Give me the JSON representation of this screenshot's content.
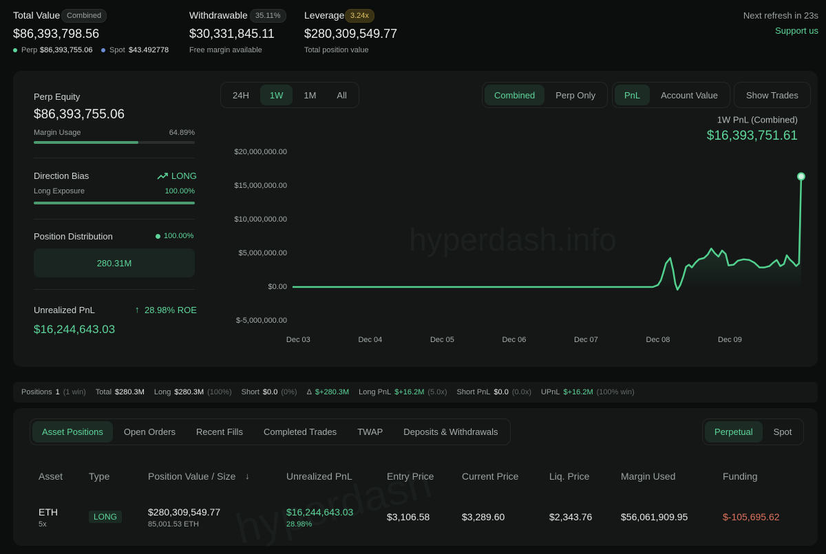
{
  "header": {
    "total_value": {
      "label": "Total Value",
      "badge": "Combined",
      "value": "$86,393,798.56",
      "perp_label": "Perp",
      "perp_value": "$86,393,755.06",
      "spot_label": "Spot",
      "spot_value": "$43.492778"
    },
    "withdrawable": {
      "label": "Withdrawable",
      "badge": "35.11%",
      "value": "$30,331,845.11",
      "sub": "Free margin available"
    },
    "leverage": {
      "label": "Leverage",
      "badge": "3.24x",
      "value": "$280,309,549.77",
      "sub": "Total position value"
    },
    "refresh": "Next refresh in 23s",
    "support": "Support us"
  },
  "sidebar": {
    "perp_equity_label": "Perp Equity",
    "perp_equity": "$86,393,755.06",
    "margin_usage_title": "Margin Usage",
    "margin_usage": {
      "value": 64.89,
      "label": "64.89%"
    },
    "direction_label": "Direction Bias",
    "direction": "LONG",
    "long_exposure_title": "Long Exposure",
    "long_exposure": {
      "value": 100,
      "label": "100.00%"
    },
    "distribution_label": "Position Distribution",
    "distribution_pct": "100.00%",
    "distribution_box": "280.31M",
    "upnl_label": "Unrealized PnL",
    "roe": "28.98% ROE",
    "upnl": "$16,244,643.03"
  },
  "controls": {
    "timeframes": {
      "items": [
        "24H",
        "1W",
        "1M",
        "All"
      ],
      "active": 1
    },
    "views": {
      "items": [
        "Combined",
        "Perp Only"
      ],
      "active": 0
    },
    "metrics": {
      "items": [
        "PnL",
        "Account Value"
      ],
      "active": 0
    },
    "show_trades": "Show Trades"
  },
  "chart_data": {
    "type": "area",
    "subtitle": "1W PnL (Combined)",
    "value_text": "$16,393,751.61",
    "watermark": "hyperdash.info",
    "color": "#52d18f",
    "x": [
      -0.08,
      4.93,
      5.0,
      5.04,
      5.07,
      5.11,
      5.17,
      5.21,
      5.24,
      5.27,
      5.31,
      5.35,
      5.39,
      5.43,
      5.47,
      5.52,
      5.57,
      5.64,
      5.69,
      5.74,
      5.79,
      5.84,
      5.89,
      5.94,
      5.98,
      6.05,
      6.11,
      6.19,
      6.27,
      6.34,
      6.41,
      6.48,
      6.55,
      6.6,
      6.65,
      6.7,
      6.75,
      6.79,
      6.83,
      6.88,
      6.92,
      6.96,
      6.99
    ],
    "values": [
      0,
      0,
      300000,
      1000000,
      2000000,
      3500000,
      4300000,
      2500000,
      500000,
      -400000,
      300000,
      1500000,
      3000000,
      3300000,
      2900000,
      3600000,
      4100000,
      4300000,
      4800000,
      5700000,
      5000000,
      4500000,
      5400000,
      4900000,
      3200000,
      3300000,
      3900000,
      4100000,
      4000000,
      3600000,
      2900000,
      2900000,
      3100000,
      3600000,
      4000000,
      3100000,
      3400000,
      4700000,
      4100000,
      3600000,
      3100000,
      3500000,
      16393751.61
    ],
    "xlim": [
      -0.08,
      7
    ],
    "xticks": [
      {
        "value": 0,
        "label": "Dec 03"
      },
      {
        "value": 1,
        "label": "Dec 04"
      },
      {
        "value": 2,
        "label": "Dec 05"
      },
      {
        "value": 3,
        "label": "Dec 06"
      },
      {
        "value": 4,
        "label": "Dec 07"
      },
      {
        "value": 5,
        "label": "Dec 08"
      },
      {
        "value": 6,
        "label": "Dec 09"
      }
    ],
    "ylim": [
      -5000000,
      20000000
    ],
    "yticks": [
      {
        "value": -5000000,
        "label": "$-5,000,000.00"
      },
      {
        "value": 0,
        "label": "$0.00"
      },
      {
        "value": 5000000,
        "label": "$5,000,000.00"
      },
      {
        "value": 10000000,
        "label": "$10,000,000.00"
      },
      {
        "value": 15000000,
        "label": "$15,000,000.00"
      },
      {
        "value": 20000000,
        "label": "$20,000,000.00"
      }
    ]
  },
  "stats": [
    {
      "label": "Positions",
      "value": "1",
      "note": "(1 win)"
    },
    {
      "label": "Total",
      "value": "$280.3M"
    },
    {
      "label": "Long",
      "value": "$280.3M",
      "note": "(100%)"
    },
    {
      "label": "Short",
      "value": "$0.0",
      "note": "(0%)"
    },
    {
      "label": "Δ",
      "value": "$+280.3M"
    },
    {
      "label": "Long PnL",
      "value": "$+16.2M",
      "note": "(5.0x)"
    },
    {
      "label": "Short PnL",
      "value": "$0.0",
      "note": "(0.0x)"
    },
    {
      "label": "UPnL",
      "value": "$+16.2M",
      "note": "(100% win)"
    }
  ],
  "tabs": {
    "items": [
      "Asset Positions",
      "Open Orders",
      "Recent Fills",
      "Completed Trades",
      "TWAP",
      "Deposits & Withdrawals"
    ],
    "active": 0
  },
  "market_tabs": {
    "items": [
      "Perpetual",
      "Spot"
    ],
    "active": 0
  },
  "table": {
    "watermark": "hyperdash",
    "headers": [
      "Asset",
      "Type",
      "Position Value / Size",
      "Unrealized PnL",
      "Entry Price",
      "Current Price",
      "Liq. Price",
      "Margin Used",
      "Funding"
    ],
    "rows": [
      {
        "asset": "ETH",
        "leverage": "5x",
        "type": "LONG",
        "value": "$280,309,549.77",
        "size": "85,001.53 ETH",
        "upnl": "$16,244,643.03",
        "upnl_pct": "28.98%",
        "entry": "$3,106.58",
        "current": "$3,289.60",
        "liq": "$2,343.76",
        "margin": "$56,061,909.95",
        "funding": "$-105,695.62"
      }
    ]
  }
}
